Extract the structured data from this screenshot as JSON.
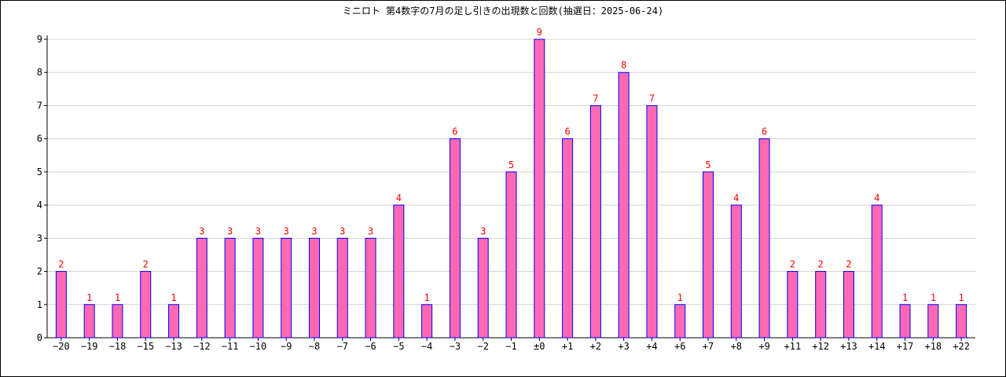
{
  "chart_data": {
    "type": "bar",
    "title": "ミニロト 第4数字の7月の足し引きの出現数と回数(抽選日：2025-06-24)",
    "xlabel": "",
    "ylabel": "",
    "categories": [
      "−20",
      "−19",
      "−18",
      "−15",
      "−13",
      "−12",
      "−11",
      "−10",
      "−9",
      "−8",
      "−7",
      "−6",
      "−5",
      "−4",
      "−3",
      "−2",
      "−1",
      "±0",
      "+1",
      "+2",
      "+3",
      "+4",
      "+6",
      "+7",
      "+8",
      "+9",
      "+11",
      "+12",
      "+13",
      "+14",
      "+17",
      "+18",
      "+22"
    ],
    "values": [
      2,
      1,
      1,
      2,
      1,
      3,
      3,
      3,
      3,
      3,
      3,
      3,
      4,
      1,
      6,
      3,
      5,
      9,
      6,
      7,
      8,
      7,
      1,
      5,
      4,
      6,
      2,
      2,
      2,
      4,
      1,
      1,
      1
    ],
    "ylim": [
      0,
      9
    ],
    "yticks": [
      0,
      1,
      2,
      3,
      4,
      5,
      6,
      7,
      8,
      9
    ],
    "grid": true,
    "legend": "none",
    "data_labels": true
  },
  "colors": {
    "bar_fill": "#ff69b4",
    "bar_stroke": "#0000ff",
    "data_label": "#ff0000",
    "grid": "#d3d3d3",
    "axis": "#000000"
  }
}
